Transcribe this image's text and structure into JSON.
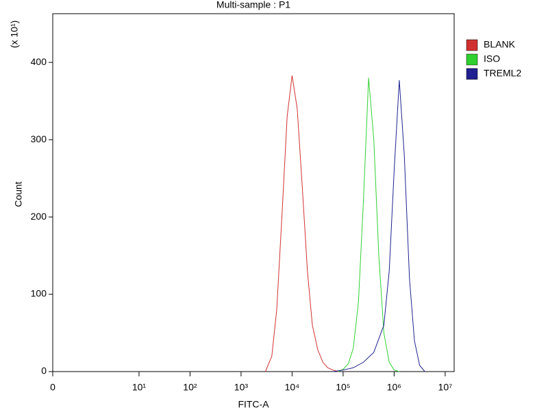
{
  "chart_data": {
    "type": "line",
    "title": "Multi-sample : P1",
    "y_multiplier": "(x 10¹)",
    "ylabel": "Count",
    "xlabel": "FITC-A",
    "xscale": "biexponential",
    "xlim": [
      0,
      15000000
    ],
    "ylim": [
      0,
      463
    ],
    "xticks": [
      0,
      {
        "value": 10,
        "label": "10¹"
      },
      {
        "value": 100,
        "label": "10²"
      },
      {
        "value": 1000,
        "label": "10³"
      },
      {
        "value": 10000,
        "label": "10⁴"
      },
      {
        "value": 100000,
        "label": "10⁵"
      },
      {
        "value": 1000000,
        "label": "10⁶"
      },
      {
        "value": 10000000,
        "label": "10⁷"
      }
    ],
    "yticks": [
      0,
      100,
      200,
      300,
      400
    ],
    "legend": "right",
    "series": [
      {
        "name": "BLANK",
        "color": "#d03030",
        "x": [
          3000,
          4000,
          5000,
          6300,
          8000,
          10000,
          12600,
          15800,
          20000,
          25000,
          32000,
          40000,
          50000,
          63000,
          80000
        ],
        "values": [
          0,
          20,
          80,
          200,
          330,
          383,
          340,
          240,
          130,
          60,
          28,
          12,
          5,
          2,
          0
        ]
      },
      {
        "name": "ISO",
        "color": "#30d030",
        "x": [
          80000,
          100000,
          126000,
          158000,
          200000,
          250000,
          316000,
          400000,
          500000,
          630000,
          800000,
          1000000,
          1260000
        ],
        "values": [
          0,
          3,
          10,
          30,
          90,
          220,
          380,
          300,
          150,
          50,
          12,
          2,
          0
        ]
      },
      {
        "name": "TREML2",
        "color": "#202090",
        "x": [
          63000,
          100000,
          158000,
          250000,
          400000,
          630000,
          800000,
          1000000,
          1260000,
          1580000,
          2000000,
          2500000,
          3160000,
          4000000
        ],
        "values": [
          0,
          2,
          5,
          12,
          25,
          60,
          130,
          260,
          377,
          280,
          120,
          40,
          8,
          0
        ]
      }
    ]
  }
}
